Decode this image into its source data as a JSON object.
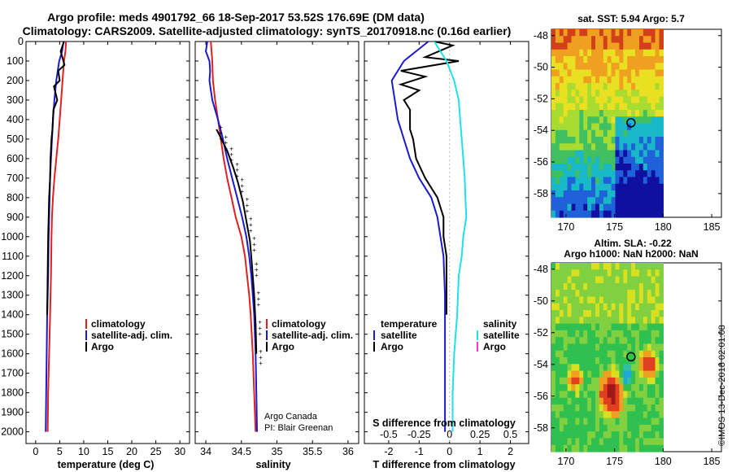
{
  "title_line1": "Argo profile: meds 4901792_66 18-Sep-2017 53.52S 176.69E (DM data)",
  "title_line2": "Climatology: CARS2009. Satellite-adjusted climatology: synTS_20170918.nc (0.16d earlier)",
  "credit": "©IMOS 13-Dec-2018 02:01:08",
  "colors": {
    "climatology": "#e02020",
    "satellite": "#1a1ad0",
    "argo": "#000000",
    "salinity_diff": "#20e0e8",
    "argo_salinity_diff": "#ff33cc"
  },
  "chart_data": [
    {
      "type": "line",
      "xlabel": "temperature (deg C)",
      "x_ticks": [
        "0",
        "5",
        "10",
        "15",
        "20",
        "25",
        "30"
      ],
      "xlim": [
        -2,
        32
      ],
      "y_ticks": [
        "0",
        "100",
        "200",
        "300",
        "400",
        "500",
        "600",
        "700",
        "800",
        "900",
        "1000",
        "1100",
        "1200",
        "1300",
        "1400",
        "1500",
        "1600",
        "1700",
        "1800",
        "1900",
        "2000"
      ],
      "ylim": [
        2060,
        0
      ],
      "y_inverted": true,
      "legend": [
        "climatology",
        "satellite-adj. clim.",
        "Argo"
      ],
      "series": [
        {
          "name": "climatology",
          "color_key": "climatology",
          "points": [
            [
              6.3,
              0
            ],
            [
              6.2,
              50
            ],
            [
              5.9,
              100
            ],
            [
              5.6,
              200
            ],
            [
              5.3,
              300
            ],
            [
              5.0,
              400
            ],
            [
              4.7,
              500
            ],
            [
              4.3,
              600
            ],
            [
              3.9,
              700
            ],
            [
              3.6,
              800
            ],
            [
              3.4,
              900
            ],
            [
              3.3,
              1000
            ],
            [
              3.2,
              1200
            ],
            [
              3.0,
              1400
            ],
            [
              2.8,
              1600
            ],
            [
              2.6,
              1800
            ],
            [
              2.5,
              2000
            ]
          ]
        },
        {
          "name": "satellite-adj. clim.",
          "color_key": "satellite",
          "points": [
            [
              5.8,
              0
            ],
            [
              5.5,
              50
            ],
            [
              4.9,
              100
            ],
            [
              4.3,
              200
            ],
            [
              3.9,
              300
            ],
            [
              3.6,
              400
            ],
            [
              3.4,
              500
            ],
            [
              3.2,
              600
            ],
            [
              3.0,
              700
            ],
            [
              2.9,
              800
            ],
            [
              2.8,
              900
            ],
            [
              2.7,
              1000
            ],
            [
              2.6,
              1200
            ],
            [
              2.4,
              1400
            ],
            [
              2.3,
              1600
            ],
            [
              2.2,
              1800
            ],
            [
              2.1,
              2000
            ]
          ]
        },
        {
          "name": "Argo",
          "color_key": "argo",
          "points": [
            [
              5.9,
              0
            ],
            [
              5.2,
              50
            ],
            [
              6.0,
              120
            ],
            [
              4.7,
              150
            ],
            [
              5.0,
              200
            ],
            [
              3.8,
              230
            ],
            [
              4.5,
              300
            ],
            [
              3.7,
              350
            ],
            [
              3.6,
              400
            ],
            [
              3.5,
              450
            ],
            [
              3.3,
              500
            ],
            [
              3.1,
              600
            ],
            [
              3.0,
              700
            ],
            [
              2.8,
              800
            ],
            [
              2.7,
              900
            ],
            [
              2.6,
              1000
            ],
            [
              2.5,
              1200
            ],
            [
              2.4,
              1400
            ]
          ]
        }
      ]
    },
    {
      "type": "line",
      "xlabel": "salinity",
      "x_ticks": [
        "34",
        "34.5",
        "35",
        "35.5",
        "36"
      ],
      "x_tick_values": [
        34,
        34.5,
        35,
        35.5,
        36
      ],
      "xlim": [
        33.85,
        36.15
      ],
      "y_inverted": true,
      "ylim": [
        2060,
        0
      ],
      "legend": [
        "climatology",
        "satellite-adj. clim.",
        "Argo"
      ],
      "annotations": [
        "Argo Canada",
        "PI: Blair Greenan"
      ],
      "series": [
        {
          "name": "climatology",
          "color_key": "climatology",
          "points": [
            [
              34.07,
              0
            ],
            [
              34.09,
              100
            ],
            [
              34.1,
              200
            ],
            [
              34.13,
              300
            ],
            [
              34.17,
              400
            ],
            [
              34.21,
              500
            ],
            [
              34.25,
              600
            ],
            [
              34.3,
              700
            ],
            [
              34.36,
              800
            ],
            [
              34.42,
              900
            ],
            [
              34.5,
              1000
            ],
            [
              34.55,
              1100
            ],
            [
              34.58,
              1200
            ],
            [
              34.61,
              1300
            ],
            [
              34.63,
              1400
            ],
            [
              34.66,
              1600
            ],
            [
              34.68,
              1800
            ],
            [
              34.7,
              2000
            ]
          ]
        },
        {
          "name": "satellite-adj. clim.",
          "color_key": "satellite",
          "points": [
            [
              34.02,
              0
            ],
            [
              34.0,
              50
            ],
            [
              34.05,
              100
            ],
            [
              34.06,
              150
            ],
            [
              34.05,
              200
            ],
            [
              34.09,
              300
            ],
            [
              34.17,
              400
            ],
            [
              34.24,
              500
            ],
            [
              34.3,
              600
            ],
            [
              34.37,
              700
            ],
            [
              34.44,
              800
            ],
            [
              34.51,
              900
            ],
            [
              34.57,
              1000
            ],
            [
              34.61,
              1100
            ],
            [
              34.64,
              1200
            ],
            [
              34.66,
              1300
            ],
            [
              34.68,
              1400
            ],
            [
              34.7,
              1600
            ],
            [
              34.71,
              1800
            ],
            [
              34.72,
              2000
            ]
          ]
        },
        {
          "name": "Argo",
          "color_key": "argo",
          "points": [
            [
              34.15,
              450
            ],
            [
              34.22,
              500
            ],
            [
              34.3,
              560
            ],
            [
              34.38,
              640
            ],
            [
              34.45,
              720
            ],
            [
              34.52,
              820
            ],
            [
              34.57,
              920
            ],
            [
              34.62,
              1020
            ],
            [
              34.65,
              1150
            ],
            [
              34.68,
              1300
            ],
            [
              34.7,
              1450
            ],
            [
              34.71,
              1600
            ]
          ]
        }
      ]
    },
    {
      "type": "line",
      "xlabel": "T difference from climatology",
      "x_ticks": [
        "-2",
        "-1",
        "0",
        "1",
        "2"
      ],
      "x_tick_values": [
        -2,
        -1,
        0,
        1,
        2
      ],
      "xlim": [
        -2.8,
        2.6
      ],
      "secondary_xlabel": "S difference from climatology",
      "secondary_x_ticks": [
        "-0.5",
        "-0.25",
        "0",
        "0.25",
        "0.5"
      ],
      "y_inverted": true,
      "ylim": [
        2060,
        0
      ],
      "legend_left_title": "temperature",
      "legend_left": [
        "satellite",
        "Argo"
      ],
      "legend_right_title": "salinity",
      "legend_right": [
        "satellite",
        "Argo"
      ],
      "series": [
        {
          "name": "satellite",
          "color_key": "satellite",
          "points": [
            [
              -0.7,
              0
            ],
            [
              -1.5,
              100
            ],
            [
              -1.9,
              200
            ],
            [
              -1.8,
              300
            ],
            [
              -1.7,
              400
            ],
            [
              -1.5,
              500
            ],
            [
              -1.3,
              600
            ],
            [
              -1.0,
              700
            ],
            [
              -0.6,
              800
            ],
            [
              -0.4,
              900
            ],
            [
              -0.3,
              1000
            ],
            [
              -0.2,
              1100
            ],
            [
              -0.15,
              1300
            ],
            [
              -0.15,
              1600
            ],
            [
              -0.15,
              2000
            ]
          ]
        },
        {
          "name": "Argo",
          "color_key": "argo",
          "points": [
            [
              -0.5,
              0
            ],
            [
              0.1,
              20
            ],
            [
              -0.8,
              80
            ],
            [
              0.3,
              100
            ],
            [
              -1.6,
              150
            ],
            [
              -0.8,
              180
            ],
            [
              -1.6,
              220
            ],
            [
              -1.0,
              250
            ],
            [
              -1.5,
              300
            ],
            [
              -1.3,
              350
            ],
            [
              -1.3,
              450
            ],
            [
              -1.2,
              500
            ],
            [
              -1.1,
              600
            ],
            [
              -0.8,
              700
            ],
            [
              -0.4,
              800
            ],
            [
              -0.2,
              900
            ],
            [
              -0.2,
              1000
            ],
            [
              -0.1,
              1100
            ],
            [
              -0.1,
              1400
            ]
          ]
        },
        {
          "name": "satellite",
          "color_key": "salinity_diff",
          "points": [
            [
              -0.5,
              0
            ],
            [
              -0.3,
              50
            ],
            [
              -0.1,
              100
            ],
            [
              0.15,
              200
            ],
            [
              0.3,
              300
            ],
            [
              0.35,
              400
            ],
            [
              0.4,
              500
            ],
            [
              0.45,
              600
            ],
            [
              0.5,
              700
            ],
            [
              0.52,
              800
            ],
            [
              0.55,
              900
            ],
            [
              0.45,
              1000
            ],
            [
              0.4,
              1100
            ],
            [
              0.3,
              1200
            ],
            [
              0.25,
              1400
            ],
            [
              0.15,
              1600
            ],
            [
              0.1,
              1800
            ],
            [
              0.1,
              2000
            ]
          ]
        }
      ]
    },
    {
      "type": "heatmap",
      "title": "sat. SST: 5.94 Argo: 5.7",
      "x_ticks": [
        "170",
        "175",
        "180",
        "185"
      ],
      "x_tick_values": [
        170,
        175,
        180,
        185
      ],
      "xlim": [
        168.5,
        186
      ],
      "y_ticks": [
        "-48",
        "-50",
        "-52",
        "-54",
        "-56",
        "-58"
      ],
      "y_tick_values": [
        -48,
        -50,
        -52,
        -54,
        -56,
        -58
      ],
      "ylim": [
        -59.5,
        -47.6
      ],
      "data_xlim": [
        168.5,
        180
      ],
      "argo_marker": [
        176.69,
        -53.52
      ]
    },
    {
      "type": "heatmap",
      "title": "Altim. SLA: -0.22",
      "subtitle": "Argo h1000: NaN h2000: NaN",
      "x_ticks": [
        "170",
        "175",
        "180",
        "185"
      ],
      "x_tick_values": [
        170,
        175,
        180,
        185
      ],
      "xlim": [
        168.5,
        186
      ],
      "y_ticks": [
        "-48",
        "-50",
        "-52",
        "-54",
        "-56",
        "-58"
      ],
      "y_tick_values": [
        -48,
        -50,
        -52,
        -54,
        -56,
        -58
      ],
      "ylim": [
        -59.5,
        -47.6
      ],
      "data_xlim": [
        168.5,
        180
      ],
      "argo_marker": [
        176.69,
        -53.52
      ]
    }
  ]
}
